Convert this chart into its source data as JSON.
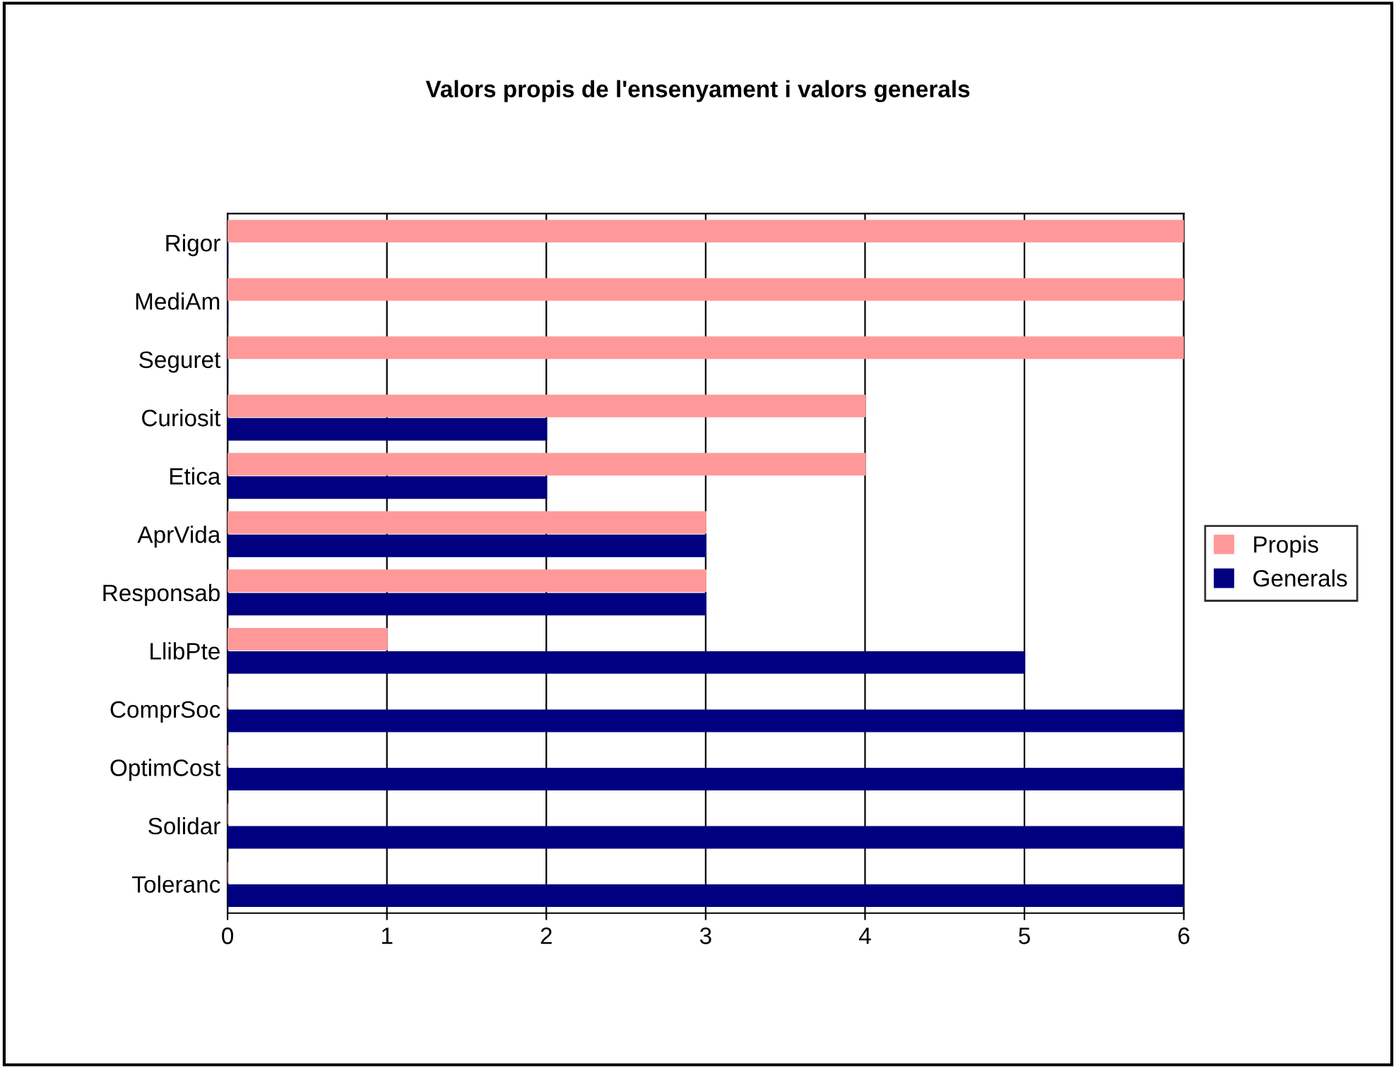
{
  "chart_data": {
    "type": "bar",
    "orientation": "horizontal",
    "title": "Valors propis de l'ensenyament i valors generals",
    "categories": [
      "Rigor",
      "MediAm",
      "Seguret",
      "Curiosit",
      "Etica",
      "AprVida",
      "Responsab",
      "LlibPte",
      "ComprSoc",
      "OptimCost",
      "Solidar",
      "Toleranc"
    ],
    "series": [
      {
        "name": "Propis",
        "color": "#ff9999",
        "values": [
          6,
          6,
          6,
          4,
          4,
          3,
          3,
          1,
          0,
          0,
          0,
          0
        ]
      },
      {
        "name": "Generals",
        "color": "#000080",
        "values": [
          0,
          0,
          0,
          2,
          2,
          3,
          3,
          5,
          6,
          6,
          6,
          6
        ]
      }
    ],
    "xlim": [
      0,
      6
    ],
    "xticks": [
      0,
      1,
      2,
      3,
      4,
      5,
      6
    ],
    "grid": "x",
    "legend": "right"
  }
}
